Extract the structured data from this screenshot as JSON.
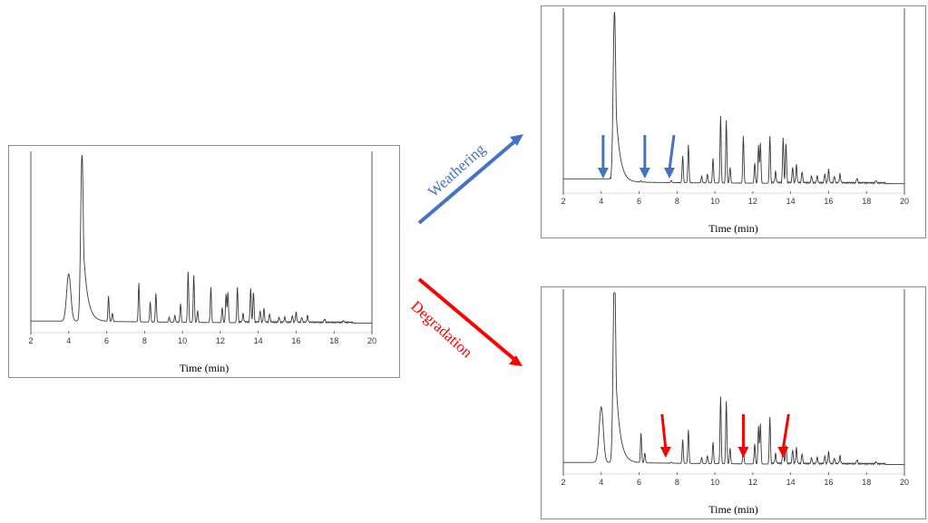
{
  "figure": {
    "colors": {
      "weathering": "#4472c4",
      "degradation": "#ff0000",
      "trace": "#3a3a3a"
    },
    "panels": [
      {
        "id": "original",
        "xlabel": "Time (min)",
        "x_ticks": [
          2,
          4,
          6,
          8,
          10,
          12,
          14,
          16,
          18,
          20
        ]
      },
      {
        "id": "weathered",
        "xlabel": "Time (min)",
        "x_ticks": [
          2,
          4,
          6,
          8,
          10,
          12,
          14,
          16,
          18,
          20
        ],
        "marker_times_min": [
          4.1,
          6.3,
          7.6
        ],
        "marker_color": "#4472c4"
      },
      {
        "id": "degraded",
        "xlabel": "Time (min)",
        "x_ticks": [
          2,
          4,
          6,
          8,
          10,
          12,
          14,
          16,
          18,
          20
        ],
        "marker_times_min": [
          7.4,
          11.5,
          13.6
        ],
        "marker_color": "#ff0000"
      }
    ],
    "processes": {
      "weathering": "Weathering",
      "degradation": "Degradation"
    }
  },
  "chart_data": [
    {
      "type": "line",
      "x_range": [
        2,
        20
      ],
      "x_unit": "min",
      "peaks": [
        {
          "t": 4.0,
          "h": 0.28,
          "w": 0.11
        },
        {
          "t": 4.7,
          "h": 1.0,
          "w": 0.07
        },
        {
          "t": 6.1,
          "h": 0.15,
          "w": 0.03
        },
        {
          "t": 6.3,
          "h": 0.05,
          "w": 0.03
        },
        {
          "t": 7.7,
          "h": 0.23,
          "w": 0.03
        },
        {
          "t": 8.3,
          "h": 0.12,
          "w": 0.03
        },
        {
          "t": 8.6,
          "h": 0.17,
          "w": 0.03
        },
        {
          "t": 9.3,
          "h": 0.03,
          "w": 0.03
        },
        {
          "t": 9.6,
          "h": 0.04,
          "w": 0.03
        },
        {
          "t": 9.9,
          "h": 0.11,
          "w": 0.03
        },
        {
          "t": 10.3,
          "h": 0.3,
          "w": 0.03
        },
        {
          "t": 10.6,
          "h": 0.28,
          "w": 0.03
        },
        {
          "t": 10.8,
          "h": 0.07,
          "w": 0.03
        },
        {
          "t": 11.5,
          "h": 0.21,
          "w": 0.03
        },
        {
          "t": 12.1,
          "h": 0.09,
          "w": 0.03
        },
        {
          "t": 12.3,
          "h": 0.17,
          "w": 0.03
        },
        {
          "t": 12.4,
          "h": 0.18,
          "w": 0.03
        },
        {
          "t": 12.9,
          "h": 0.21,
          "w": 0.03
        },
        {
          "t": 13.2,
          "h": 0.05,
          "w": 0.03
        },
        {
          "t": 13.6,
          "h": 0.2,
          "w": 0.03
        },
        {
          "t": 13.75,
          "h": 0.18,
          "w": 0.03
        },
        {
          "t": 14.1,
          "h": 0.07,
          "w": 0.03
        },
        {
          "t": 14.3,
          "h": 0.08,
          "w": 0.03
        },
        {
          "t": 14.6,
          "h": 0.05,
          "w": 0.03
        },
        {
          "t": 15.1,
          "h": 0.03,
          "w": 0.03
        },
        {
          "t": 15.4,
          "h": 0.03,
          "w": 0.03
        },
        {
          "t": 15.8,
          "h": 0.04,
          "w": 0.03
        },
        {
          "t": 16.0,
          "h": 0.06,
          "w": 0.03
        },
        {
          "t": 16.3,
          "h": 0.03,
          "w": 0.03
        },
        {
          "t": 16.6,
          "h": 0.04,
          "w": 0.03
        },
        {
          "t": 17.5,
          "h": 0.02,
          "w": 0.03
        },
        {
          "t": 18.5,
          "h": 0.01,
          "w": 0.03
        }
      ]
    }
  ]
}
